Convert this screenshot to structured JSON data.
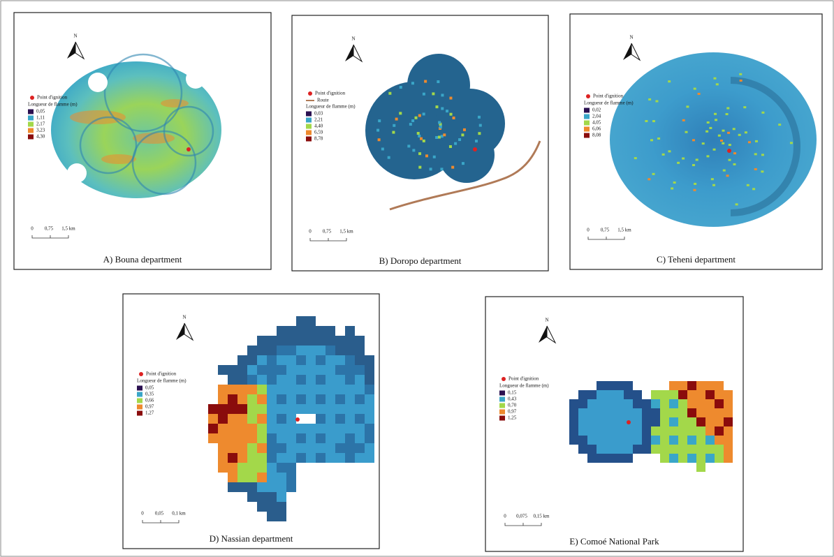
{
  "panels": [
    {
      "caption": "A)  Bouna department",
      "north": "N",
      "ignition_label": "Point d'ignition",
      "legend_title": "Longueur de flamme (m)",
      "legend": [
        {
          "label": "0,05",
          "color": "#2b1050"
        },
        {
          "label": "1,11",
          "color": "#3aa6c8"
        },
        {
          "label": "2,17",
          "color": "#a3d84a"
        },
        {
          "label": "3,23",
          "color": "#ee8a2e"
        },
        {
          "label": "4,30",
          "color": "#8a0c0c"
        }
      ],
      "scale": [
        "0",
        "0,75",
        "1,5 km"
      ]
    },
    {
      "caption": "B) Doropo department",
      "north": "N",
      "ignition_label": "Point d'ignition",
      "route_label": "Route",
      "legend_title": "Longueur de flamme (m)",
      "legend": [
        {
          "label": "0,03",
          "color": "#2b1050"
        },
        {
          "label": "2,21",
          "color": "#3aa6c8"
        },
        {
          "label": "4,40",
          "color": "#a3d84a"
        },
        {
          "label": "6,59",
          "color": "#ee8a2e"
        },
        {
          "label": "8,78",
          "color": "#8a0c0c"
        }
      ],
      "scale": [
        "0",
        "0,75",
        "1,5 km"
      ]
    },
    {
      "caption": "C) Teheni department",
      "north": "N",
      "ignition_label": "Point d'ignition",
      "legend_title": "Longueur de flamme (m)",
      "legend": [
        {
          "label": "0,02",
          "color": "#2b1050"
        },
        {
          "label": "2,04",
          "color": "#3aa6c8"
        },
        {
          "label": "4,05",
          "color": "#a3d84a"
        },
        {
          "label": "6,06",
          "color": "#ee8a2e"
        },
        {
          "label": "8,08",
          "color": "#8a0c0c"
        }
      ],
      "scale": [
        "0",
        "0,75",
        "1,5 km"
      ]
    },
    {
      "caption": "D) Nassian department",
      "north": "N",
      "ignition_label": "Point d'ignition",
      "legend_title": "Longueur de flamme (m)",
      "legend": [
        {
          "label": "0,05",
          "color": "#2b1050"
        },
        {
          "label": "0,35",
          "color": "#3aa6c8"
        },
        {
          "label": "0,66",
          "color": "#a3d84a"
        },
        {
          "label": "0,97",
          "color": "#ee8a2e"
        },
        {
          "label": "1,27",
          "color": "#8a0c0c"
        }
      ],
      "scale": [
        "0",
        "0,05",
        "0,1 km"
      ]
    },
    {
      "caption": "E) Comoé National Park",
      "north": "N",
      "ignition_label": "Point d'ignition",
      "legend_title": "Longueur de flamme (m)",
      "legend": [
        {
          "label": "0,15",
          "color": "#2b1050"
        },
        {
          "label": "0,43",
          "color": "#3aa6c8"
        },
        {
          "label": "0,70",
          "color": "#a3d84a"
        },
        {
          "label": "0,97",
          "color": "#ee8a2e"
        },
        {
          "label": "1,25",
          "color": "#8a0c0c"
        }
      ],
      "scale": [
        "0",
        "0,075",
        "0,15 km"
      ]
    }
  ]
}
